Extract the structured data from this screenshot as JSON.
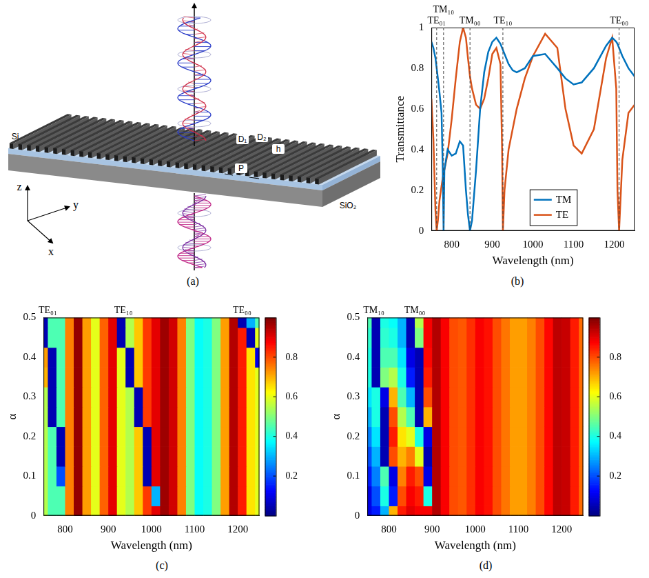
{
  "diagram": {
    "caption": "(a)",
    "layers": [
      "Si",
      "SiO₂"
    ],
    "dimensions": [
      "D₁",
      "D₂",
      "h",
      "P"
    ],
    "axes": [
      "z",
      "y",
      "x"
    ]
  },
  "chart_data": [
    {
      "type": "line",
      "caption": "(b)",
      "x_label": "Wavelength (nm)",
      "y_label": "Transmittance",
      "xlim": [
        750,
        1250
      ],
      "xticks": [
        800,
        900,
        1000,
        1100,
        1200
      ],
      "ylim": [
        0,
        1
      ],
      "yticks": [
        0,
        0.2,
        0.4,
        0.6,
        0.8,
        1
      ],
      "grid": false,
      "legend": "lower center",
      "annotations": [
        {
          "label": "TE₀₁",
          "x": 763
        },
        {
          "label": "TM₁₀",
          "x": 780
        },
        {
          "label": "TM₀₀",
          "x": 845
        },
        {
          "label": "TE₁₀",
          "x": 926
        },
        {
          "label": "TE₀₀",
          "x": 1212
        }
      ],
      "x": [
        750,
        755,
        760,
        763,
        766,
        770,
        775,
        778,
        780,
        782,
        790,
        800,
        810,
        820,
        828,
        835,
        840,
        845,
        850,
        860,
        870,
        880,
        890,
        900,
        910,
        920,
        924,
        926,
        930,
        940,
        950,
        960,
        980,
        1000,
        1030,
        1060,
        1080,
        1100,
        1120,
        1150,
        1180,
        1195,
        1205,
        1208,
        1212,
        1220,
        1235,
        1250
      ],
      "series": [
        {
          "name": "TM",
          "color": "#0072bd",
          "values": [
            0.93,
            0.9,
            0.85,
            0.8,
            0.75,
            0.68,
            0.58,
            0.3,
            0,
            0.3,
            0.4,
            0.37,
            0.38,
            0.44,
            0.42,
            0.2,
            0.08,
            0,
            0.05,
            0.3,
            0.6,
            0.78,
            0.88,
            0.93,
            0.95,
            0.92,
            0.9,
            0.89,
            0.87,
            0.82,
            0.79,
            0.78,
            0.8,
            0.86,
            0.87,
            0.8,
            0.75,
            0.72,
            0.73,
            0.8,
            0.91,
            0.95,
            0.93,
            0.92,
            0.9,
            0.86,
            0.8,
            0.76
          ]
        },
        {
          "name": "TE",
          "color": "#d95319",
          "values": [
            0.65,
            0.45,
            0.1,
            0,
            0.05,
            0.15,
            0.22,
            0.26,
            0.28,
            0.3,
            0.38,
            0.55,
            0.75,
            0.93,
            1,
            0.95,
            0.85,
            0.76,
            0.7,
            0.62,
            0.6,
            0.65,
            0.75,
            0.87,
            0.9,
            0.82,
            0.4,
            0,
            0.2,
            0.4,
            0.5,
            0.6,
            0.75,
            0.86,
            0.97,
            0.9,
            0.6,
            0.42,
            0.38,
            0.5,
            0.85,
            0.95,
            0.7,
            0.2,
            0,
            0.35,
            0.58,
            0.62
          ]
        }
      ]
    },
    {
      "type": "heatmap",
      "caption": "(c)",
      "x_label": "Wavelength (nm)",
      "y_label": "α",
      "xlim": [
        750,
        1250
      ],
      "xticks": [
        800,
        900,
        1000,
        1100,
        1200
      ],
      "ylim": [
        0,
        0.5
      ],
      "yticks": [
        0,
        0.1,
        0.2,
        0.3,
        0.4,
        0.5
      ],
      "grid": false,
      "annotations": [
        {
          "label": "TE₀₁",
          "x": 760
        },
        {
          "label": "TE₁₀",
          "x": 935
        },
        {
          "label": "TE₀₀",
          "x": 1210
        }
      ],
      "x": [
        750,
        770,
        790,
        810,
        830,
        850,
        870,
        890,
        910,
        930,
        950,
        970,
        990,
        1010,
        1030,
        1050,
        1070,
        1090,
        1110,
        1130,
        1150,
        1170,
        1190,
        1210,
        1230,
        1250
      ],
      "y": [
        0,
        0.05,
        0.1,
        0.15,
        0.2,
        0.25,
        0.3,
        0.35,
        0.4,
        0.45,
        0.5
      ],
      "cells": [
        [
          0.55,
          0.45,
          0.45,
          0.75,
          0.98,
          0.72,
          0.6,
          0.78,
          0.9,
          0.6,
          0.55,
          0.68,
          0.82,
          0.9,
          0.97,
          0.92,
          0.75,
          0.5,
          0.38,
          0.4,
          0.5,
          0.72,
          0.95,
          0.85,
          0.65,
          0.6
        ],
        [
          0.55,
          0.45,
          0.45,
          0.75,
          0.98,
          0.72,
          0.6,
          0.78,
          0.9,
          0.6,
          0.55,
          0.68,
          0.82,
          0.3,
          0.97,
          0.92,
          0.75,
          0.5,
          0.38,
          0.4,
          0.5,
          0.72,
          0.95,
          0.85,
          0.65,
          0.6
        ],
        [
          0.55,
          0.45,
          0.2,
          0.75,
          0.98,
          0.72,
          0.6,
          0.78,
          0.9,
          0.6,
          0.55,
          0.68,
          0.05,
          0.9,
          0.97,
          0.92,
          0.75,
          0.5,
          0.38,
          0.4,
          0.5,
          0.72,
          0.95,
          0.85,
          0.65,
          0.6
        ],
        [
          0.55,
          0.45,
          0.05,
          0.75,
          0.98,
          0.72,
          0.6,
          0.78,
          0.9,
          0.6,
          0.55,
          0.68,
          0.05,
          0.9,
          0.97,
          0.92,
          0.75,
          0.5,
          0.38,
          0.4,
          0.5,
          0.72,
          0.95,
          0.85,
          0.65,
          0.6
        ],
        [
          0.55,
          0.45,
          0.05,
          0.75,
          0.98,
          0.72,
          0.6,
          0.78,
          0.9,
          0.6,
          0.55,
          0.68,
          0.05,
          0.9,
          0.97,
          0.92,
          0.75,
          0.5,
          0.38,
          0.4,
          0.5,
          0.72,
          0.95,
          0.85,
          0.65,
          0.6
        ],
        [
          0.55,
          0.05,
          0.45,
          0.75,
          0.98,
          0.72,
          0.6,
          0.78,
          0.9,
          0.6,
          0.55,
          0.05,
          0.82,
          0.9,
          0.97,
          0.92,
          0.75,
          0.5,
          0.38,
          0.4,
          0.5,
          0.72,
          0.95,
          0.85,
          0.65,
          0.6
        ],
        [
          0.55,
          0.05,
          0.45,
          0.75,
          0.98,
          0.72,
          0.6,
          0.78,
          0.9,
          0.6,
          0.55,
          0.05,
          0.82,
          0.9,
          0.97,
          0.92,
          0.75,
          0.5,
          0.38,
          0.4,
          0.5,
          0.72,
          0.95,
          0.85,
          0.65,
          0.6
        ],
        [
          0.7,
          0.05,
          0.45,
          0.75,
          0.98,
          0.72,
          0.6,
          0.78,
          0.9,
          0.6,
          0.05,
          0.68,
          0.82,
          0.9,
          0.97,
          0.92,
          0.75,
          0.5,
          0.38,
          0.4,
          0.5,
          0.72,
          0.95,
          0.85,
          0.65,
          0.6
        ],
        [
          0.72,
          0.05,
          0.45,
          0.75,
          0.98,
          0.72,
          0.6,
          0.78,
          0.9,
          0.6,
          0.05,
          0.68,
          0.82,
          0.9,
          0.97,
          0.92,
          0.75,
          0.5,
          0.38,
          0.4,
          0.5,
          0.72,
          0.95,
          0.85,
          0.65,
          0.1
        ],
        [
          0.05,
          0.45,
          0.45,
          0.75,
          0.98,
          0.72,
          0.6,
          0.78,
          0.9,
          0.05,
          0.55,
          0.68,
          0.82,
          0.9,
          0.97,
          0.92,
          0.75,
          0.5,
          0.38,
          0.4,
          0.5,
          0.72,
          0.95,
          0.85,
          0.05,
          0.6
        ],
        [
          0.05,
          0.45,
          0.45,
          0.75,
          0.98,
          0.72,
          0.6,
          0.78,
          0.9,
          0.05,
          0.55,
          0.68,
          0.82,
          0.9,
          0.97,
          0.92,
          0.75,
          0.5,
          0.38,
          0.4,
          0.5,
          0.72,
          0.95,
          0.05,
          0.3,
          0.45
        ]
      ],
      "colorbar": {
        "range": [
          0,
          1
        ],
        "ticks": [
          0.2,
          0.4,
          0.6,
          0.8
        ]
      }
    },
    {
      "type": "heatmap",
      "caption": "(d)",
      "x_label": "Wavelength (nm)",
      "y_label": "α",
      "xlim": [
        750,
        1250
      ],
      "xticks": [
        800,
        900,
        1000,
        1100,
        1200
      ],
      "ylim": [
        0,
        0.5
      ],
      "yticks": [
        0,
        0.1,
        0.2,
        0.3,
        0.4,
        0.5
      ],
      "grid": false,
      "annotations": [
        {
          "label": "TM₁₀",
          "x": 765
        },
        {
          "label": "TM₀₀",
          "x": 860
        }
      ],
      "x": [
        750,
        770,
        790,
        810,
        830,
        850,
        870,
        890,
        910,
        930,
        950,
        970,
        990,
        1010,
        1030,
        1050,
        1070,
        1090,
        1110,
        1130,
        1150,
        1170,
        1190,
        1210,
        1230,
        1250
      ],
      "y": [
        0,
        0.05,
        0.1,
        0.15,
        0.2,
        0.25,
        0.3,
        0.35,
        0.4,
        0.45,
        0.5
      ],
      "cells": [
        [
          0.1,
          0.15,
          0.3,
          0.7,
          0.85,
          0.9,
          0.88,
          0.88,
          0.95,
          0.88,
          0.8,
          0.79,
          0.83,
          0.88,
          0.86,
          0.8,
          0.76,
          0.72,
          0.72,
          0.75,
          0.8,
          0.87,
          0.94,
          0.93,
          0.85,
          0.77
        ],
        [
          0.1,
          0.2,
          0.4,
          0.15,
          0.8,
          0.88,
          0.85,
          0.4,
          0.95,
          0.88,
          0.8,
          0.79,
          0.83,
          0.88,
          0.86,
          0.8,
          0.76,
          0.72,
          0.72,
          0.75,
          0.8,
          0.87,
          0.94,
          0.93,
          0.85,
          0.77
        ],
        [
          0.15,
          0.25,
          0.45,
          0.1,
          0.75,
          0.85,
          0.8,
          0.1,
          0.95,
          0.88,
          0.8,
          0.79,
          0.83,
          0.88,
          0.86,
          0.8,
          0.76,
          0.72,
          0.72,
          0.75,
          0.8,
          0.87,
          0.94,
          0.93,
          0.85,
          0.77
        ],
        [
          0.2,
          0.3,
          0.05,
          0.8,
          0.7,
          0.75,
          0.6,
          0.05,
          0.95,
          0.88,
          0.8,
          0.79,
          0.83,
          0.88,
          0.86,
          0.8,
          0.76,
          0.72,
          0.72,
          0.75,
          0.8,
          0.87,
          0.94,
          0.93,
          0.85,
          0.77
        ],
        [
          0.25,
          0.35,
          0.05,
          0.85,
          0.65,
          0.6,
          0.4,
          0.1,
          0.95,
          0.88,
          0.8,
          0.79,
          0.83,
          0.88,
          0.86,
          0.8,
          0.76,
          0.72,
          0.72,
          0.75,
          0.8,
          0.87,
          0.94,
          0.93,
          0.85,
          0.77
        ],
        [
          0.3,
          0.4,
          0.05,
          0.8,
          0.55,
          0.45,
          0.05,
          0.7,
          0.95,
          0.88,
          0.8,
          0.79,
          0.83,
          0.88,
          0.86,
          0.8,
          0.76,
          0.72,
          0.72,
          0.75,
          0.8,
          0.87,
          0.94,
          0.93,
          0.85,
          0.77
        ],
        [
          0.35,
          0.4,
          0.1,
          0.7,
          0.45,
          0.3,
          0.05,
          0.8,
          0.95,
          0.88,
          0.8,
          0.79,
          0.83,
          0.88,
          0.86,
          0.8,
          0.76,
          0.72,
          0.72,
          0.75,
          0.8,
          0.87,
          0.94,
          0.93,
          0.85,
          0.77
        ],
        [
          0.4,
          0.05,
          0.5,
          0.55,
          0.4,
          0.15,
          0.05,
          0.85,
          0.95,
          0.88,
          0.8,
          0.79,
          0.83,
          0.88,
          0.86,
          0.8,
          0.76,
          0.72,
          0.72,
          0.75,
          0.8,
          0.87,
          0.94,
          0.93,
          0.85,
          0.77
        ],
        [
          0.4,
          0.05,
          0.45,
          0.45,
          0.35,
          0.1,
          0.05,
          0.87,
          0.95,
          0.88,
          0.8,
          0.79,
          0.83,
          0.88,
          0.86,
          0.8,
          0.76,
          0.72,
          0.72,
          0.75,
          0.8,
          0.87,
          0.94,
          0.93,
          0.85,
          0.77
        ],
        [
          0.42,
          0.05,
          0.42,
          0.4,
          0.3,
          0.05,
          0.5,
          0.88,
          0.95,
          0.88,
          0.8,
          0.79,
          0.83,
          0.88,
          0.86,
          0.8,
          0.76,
          0.72,
          0.72,
          0.75,
          0.8,
          0.87,
          0.94,
          0.93,
          0.85,
          0.77
        ],
        [
          0.45,
          0.05,
          0.4,
          0.38,
          0.3,
          0.05,
          0.55,
          0.88,
          0.95,
          0.88,
          0.8,
          0.79,
          0.83,
          0.88,
          0.86,
          0.8,
          0.76,
          0.72,
          0.72,
          0.75,
          0.8,
          0.87,
          0.94,
          0.93,
          0.85,
          0.77
        ]
      ],
      "colorbar": {
        "range": [
          0,
          1
        ],
        "ticks": [
          0.2,
          0.4,
          0.6,
          0.8
        ]
      }
    }
  ]
}
